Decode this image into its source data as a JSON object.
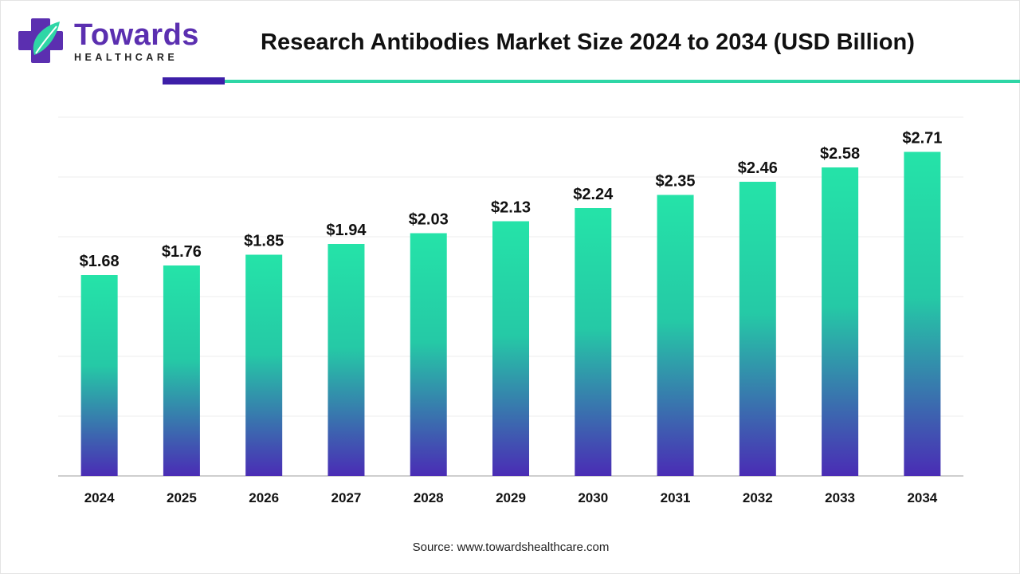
{
  "brand": {
    "name": "Towards",
    "tagline": "HEALTHCARE",
    "colors": {
      "primary": "#5b2fb0",
      "accent": "#2fd6a6",
      "dark": "#3d1fa8"
    }
  },
  "source_text": "Source: www.towardshealthcare.com",
  "chart_data": {
    "type": "bar",
    "title": "Research Antibodies Market Size 2024 to 2034 (USD Billion)",
    "categories": [
      "2024",
      "2025",
      "2026",
      "2027",
      "2028",
      "2029",
      "2030",
      "2031",
      "2032",
      "2033",
      "2034"
    ],
    "values": [
      1.68,
      1.76,
      1.85,
      1.94,
      2.03,
      2.13,
      2.24,
      2.35,
      2.46,
      2.58,
      2.71
    ],
    "value_labels": [
      "$1.68",
      "$1.76",
      "$1.85",
      "$1.94",
      "$2.03",
      "$2.13",
      "$2.24",
      "$2.35",
      "$2.46",
      "$2.58",
      "$2.71"
    ],
    "xlabel": "",
    "ylabel": "",
    "ylim": [
      0,
      3
    ],
    "grid": true,
    "legend": "none",
    "bar_gradient": {
      "top": "#25e3a8",
      "bottom": "#4a2cb5"
    }
  }
}
